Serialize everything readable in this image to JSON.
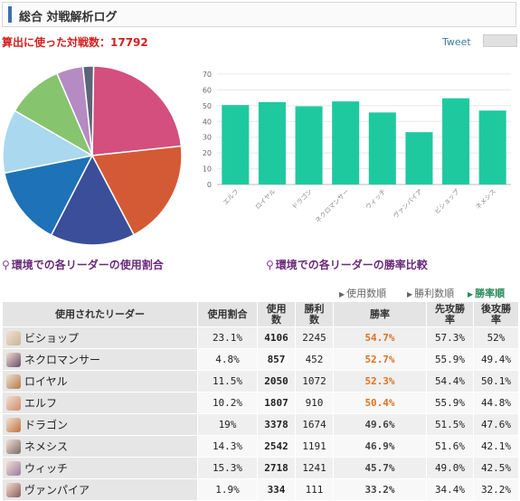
{
  "header": {
    "title": "総合 対戦解析ログ"
  },
  "summary": {
    "total_label": "算出に使った対戦数：17792"
  },
  "tweet": {
    "label": "Tweet",
    "count_label": ""
  },
  "captions": {
    "pie": "環境での各リーダーの使用割合",
    "bar": "環境での各リーダーの勝率比較"
  },
  "sort": {
    "usage": "使用数順",
    "wins": "勝利数順",
    "winrate": "勝率順"
  },
  "table": {
    "headers": {
      "leader": "使用されたリーダー",
      "usage_rate": "使用割合",
      "uses": "使用数",
      "wins": "勝利数",
      "winrate": "勝率",
      "first": "先攻勝率",
      "second": "後攻勝率"
    },
    "rows": [
      {
        "name": "ビショップ",
        "usage": "23.1%",
        "uses": "4106",
        "wins": "2245",
        "rate": "54.7%",
        "first": "57.3%",
        "second": "52%",
        "color": "#c9b49a"
      },
      {
        "name": "ネクロマンサー",
        "usage": "4.8%",
        "uses": "857",
        "wins": "452",
        "rate": "52.7%",
        "first": "55.9%",
        "second": "49.4%",
        "color": "#6a4a6a"
      },
      {
        "name": "ロイヤル",
        "usage": "11.5%",
        "uses": "2050",
        "wins": "1072",
        "rate": "52.3%",
        "first": "54.4%",
        "second": "50.1%",
        "color": "#b07a4a"
      },
      {
        "name": "エルフ",
        "usage": "10.2%",
        "uses": "1807",
        "wins": "910",
        "rate": "50.4%",
        "first": "55.9%",
        "second": "44.8%",
        "color": "#d08a6a"
      },
      {
        "name": "ドラゴン",
        "usage": "19%",
        "uses": "3378",
        "wins": "1674",
        "rate": "49.6%",
        "first": "51.5%",
        "second": "47.6%",
        "color": "#c07040"
      },
      {
        "name": "ネメシス",
        "usage": "14.3%",
        "uses": "2542",
        "wins": "1191",
        "rate": "46.9%",
        "first": "51.6%",
        "second": "42.1%",
        "color": "#7a6a6a"
      },
      {
        "name": "ウィッチ",
        "usage": "15.3%",
        "uses": "2718",
        "wins": "1241",
        "rate": "45.7%",
        "first": "49.0%",
        "second": "42.5%",
        "color": "#9a7aa0"
      },
      {
        "name": "ヴァンパイア",
        "usage": "1.9%",
        "uses": "334",
        "wins": "111",
        "rate": "33.2%",
        "first": "34.4%",
        "second": "32.2%",
        "color": "#8a5a5a"
      }
    ]
  },
  "chart_data": [
    {
      "type": "pie",
      "categories": [
        "ビショップ",
        "ドラゴン",
        "ウィッチ",
        "ネメシス",
        "ロイヤル",
        "エルフ",
        "ネクロマンサー",
        "ヴァンパイア"
      ],
      "values": [
        23.1,
        19,
        15.3,
        14.3,
        11.5,
        10.2,
        4.8,
        1.9
      ],
      "colors": [
        "#d44e7e",
        "#d45a36",
        "#3a4e9a",
        "#1e72b8",
        "#a9d8ef",
        "#86c46e",
        "#b68ac2",
        "#5a6676"
      ]
    },
    {
      "type": "bar",
      "categories": [
        "エルフ",
        "ロイヤル",
        "ドラゴン",
        "ネクロマンサー",
        "ウィッチ",
        "ヴァンパイア",
        "ビショップ",
        "ネメシス"
      ],
      "values": [
        50.4,
        52.3,
        49.6,
        52.7,
        45.7,
        33.2,
        54.7,
        46.9
      ],
      "ylim": [
        0,
        70
      ],
      "yticks": [
        0,
        10,
        20,
        30,
        40,
        50,
        60,
        70
      ],
      "color": "#1fc9a0",
      "grid": true
    }
  ]
}
